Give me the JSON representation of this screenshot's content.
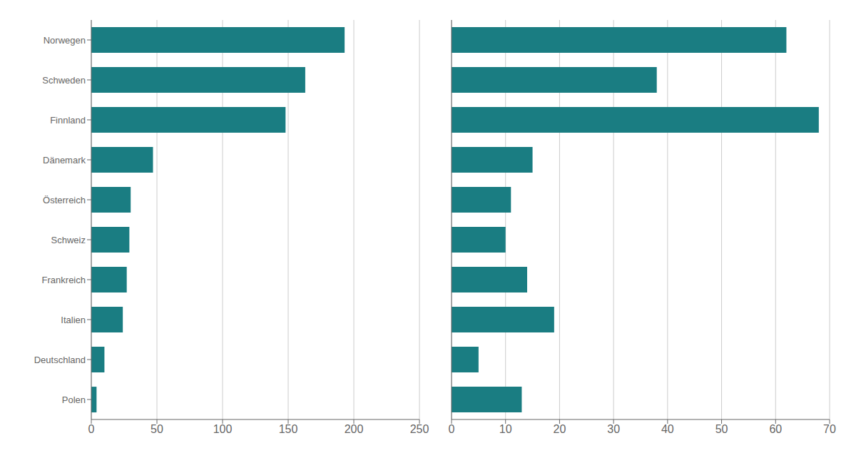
{
  "chart_data": [
    {
      "type": "bar",
      "orientation": "horizontal",
      "categories": [
        "Norwegen",
        "Schweden",
        "Finnland",
        "Dänemark",
        "Österreich",
        "Schweiz",
        "Frankreich",
        "Italien",
        "Deutschland",
        "Polen"
      ],
      "values": [
        193,
        163,
        148,
        47,
        30,
        29,
        27,
        24,
        10,
        4
      ],
      "color": "#1a7d82",
      "xlim": [
        0,
        250
      ],
      "xticks": [
        0,
        50,
        100,
        150,
        200,
        250
      ],
      "grid": true
    },
    {
      "type": "bar",
      "orientation": "horizontal",
      "categories": [
        "Norwegen",
        "Schweden",
        "Finnland",
        "Dänemark",
        "Österreich",
        "Schweiz",
        "Frankreich",
        "Italien",
        "Deutschland",
        "Polen"
      ],
      "values": [
        62,
        38,
        68,
        15,
        11,
        10,
        14,
        19,
        5,
        13
      ],
      "color": "#1a7d82",
      "xlim": [
        0,
        70
      ],
      "xticks": [
        0,
        10,
        20,
        30,
        40,
        50,
        60,
        70
      ],
      "grid": true,
      "tick_labels": "x"
    }
  ]
}
